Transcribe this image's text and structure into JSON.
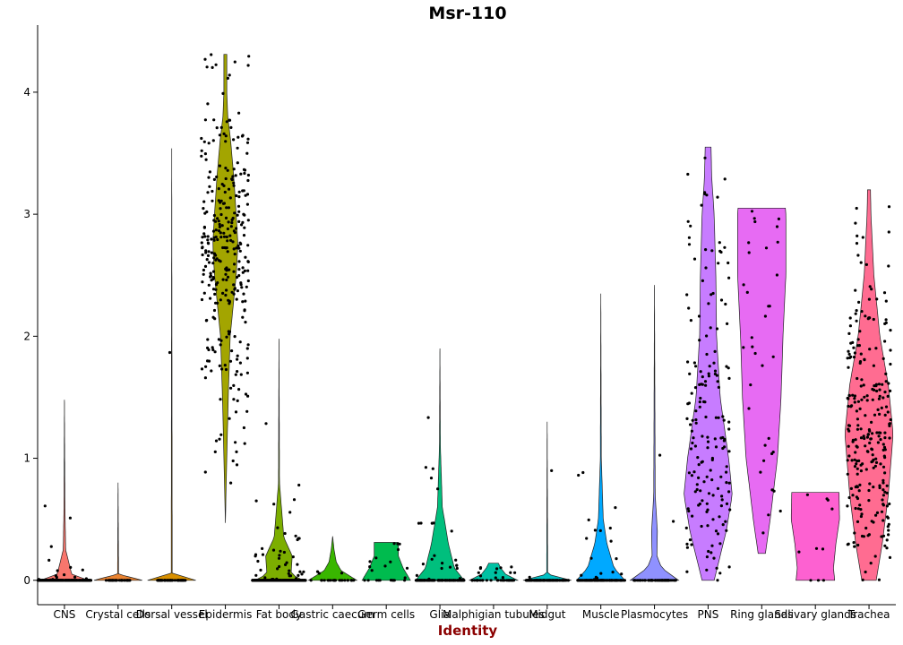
{
  "chart_data": {
    "type": "violin",
    "title": "Msr-110",
    "xlabel": "Identity",
    "ylabel": "",
    "ylim": [
      -0.2,
      4.55
    ],
    "yticks": [
      0,
      1,
      2,
      3,
      4
    ],
    "grid": false,
    "legend": "none",
    "categories": [
      {
        "name": "CNS",
        "color": "#f8766d",
        "max": 1.48,
        "profile": [
          [
            0,
            1.0
          ],
          [
            0.05,
            0.3
          ],
          [
            0.25,
            0.05
          ],
          [
            0.6,
            0.02
          ],
          [
            1.48,
            0.0
          ]
        ],
        "n": 260,
        "spread": 1.1
      },
      {
        "name": "Crystal cells",
        "color": "#ea8331",
        "max": 0.8,
        "profile": [
          [
            0,
            1.0
          ],
          [
            0.05,
            0.02
          ],
          [
            0.8,
            0.0
          ]
        ],
        "n": 28,
        "spread": 0.5
      },
      {
        "name": "Dorsal vessel",
        "color": "#d89000",
        "max": 3.54,
        "profile": [
          [
            0,
            1.0
          ],
          [
            0.05,
            0.02
          ],
          [
            3.54,
            0.0
          ]
        ],
        "n": 50,
        "spread": 0.6
      },
      {
        "name": "Epidermis",
        "color": "#a3a500",
        "max": 4.31,
        "profile": [
          [
            0.47,
            0.0
          ],
          [
            1.0,
            0.06
          ],
          [
            1.5,
            0.12
          ],
          [
            2.0,
            0.2
          ],
          [
            2.5,
            0.45
          ],
          [
            2.75,
            0.52
          ],
          [
            3.0,
            0.45
          ],
          [
            3.3,
            0.35
          ],
          [
            3.6,
            0.22
          ],
          [
            3.8,
            0.1
          ],
          [
            4.0,
            0.06
          ],
          [
            4.31,
            0.06
          ]
        ],
        "n": 320,
        "spread": 1.0,
        "minval": 0.47
      },
      {
        "name": "Fat body",
        "color": "#7cae00",
        "max": 1.98,
        "profile": [
          [
            0,
            1.0
          ],
          [
            0.05,
            0.5
          ],
          [
            0.2,
            0.55
          ],
          [
            0.35,
            0.2
          ],
          [
            0.8,
            0.02
          ],
          [
            1.98,
            0.0
          ]
        ],
        "n": 300,
        "spread": 1.1
      },
      {
        "name": "Gastric caecum",
        "color": "#39b600",
        "max": 0.36,
        "profile": [
          [
            0,
            1.0
          ],
          [
            0.08,
            0.35
          ],
          [
            0.15,
            0.15
          ],
          [
            0.25,
            0.06
          ],
          [
            0.36,
            0.0
          ]
        ],
        "n": 26,
        "spread": 0.9
      },
      {
        "name": "Germ cells",
        "color": "#00bb4e",
        "max": 0.31,
        "profile": [
          [
            0,
            1.0
          ],
          [
            0.1,
            0.7
          ],
          [
            0.2,
            0.5
          ],
          [
            0.31,
            0.5
          ]
        ],
        "n": 22,
        "spread": 0.9
      },
      {
        "name": "Glia",
        "color": "#00bf7d",
        "max": 1.9,
        "profile": [
          [
            0,
            1.0
          ],
          [
            0.1,
            0.6
          ],
          [
            0.3,
            0.35
          ],
          [
            0.6,
            0.1
          ],
          [
            1.1,
            0.02
          ],
          [
            1.9,
            0.0
          ]
        ],
        "n": 120,
        "spread": 1.0
      },
      {
        "name": "Malphigian tubules",
        "color": "#00c1a3",
        "max": 0.14,
        "profile": [
          [
            0,
            1.0
          ],
          [
            0.05,
            0.5
          ],
          [
            0.1,
            0.3
          ],
          [
            0.14,
            0.2
          ]
        ],
        "n": 40,
        "spread": 0.9
      },
      {
        "name": "Midgut",
        "color": "#00bfc4",
        "max": 1.3,
        "profile": [
          [
            0,
            1.0
          ],
          [
            0.05,
            0.02
          ],
          [
            1.3,
            0.0
          ]
        ],
        "n": 90,
        "spread": 0.9
      },
      {
        "name": "Muscle",
        "color": "#00a9ff",
        "max": 2.35,
        "profile": [
          [
            0,
            1.0
          ],
          [
            0.1,
            0.55
          ],
          [
            0.3,
            0.25
          ],
          [
            0.5,
            0.1
          ],
          [
            1.0,
            0.02
          ],
          [
            2.35,
            0.0
          ]
        ],
        "n": 120,
        "spread": 1.0
      },
      {
        "name": "Plasmocytes",
        "color": "#8f91ff",
        "max": 2.42,
        "profile": [
          [
            0,
            1.0
          ],
          [
            0.1,
            0.3
          ],
          [
            0.2,
            0.1
          ],
          [
            0.4,
            0.12
          ],
          [
            0.7,
            0.03
          ],
          [
            2.42,
            0.0
          ]
        ],
        "n": 60,
        "spread": 0.9
      },
      {
        "name": "PNS",
        "color": "#c77cff",
        "max": 3.55,
        "profile": [
          [
            0,
            0.25
          ],
          [
            0.4,
            0.75
          ],
          [
            0.7,
            1.0
          ],
          [
            1.0,
            0.85
          ],
          [
            1.5,
            0.5
          ],
          [
            2.0,
            0.35
          ],
          [
            2.5,
            0.32
          ],
          [
            3.0,
            0.25
          ],
          [
            3.3,
            0.15
          ],
          [
            3.55,
            0.12
          ]
        ],
        "n": 170,
        "spread": 0.9
      },
      {
        "name": "Ring glands",
        "color": "#e76bf3",
        "max": 3.05,
        "profile": [
          [
            0.22,
            0.15
          ],
          [
            0.5,
            0.35
          ],
          [
            1.0,
            0.65
          ],
          [
            1.5,
            0.8
          ],
          [
            2.0,
            0.88
          ],
          [
            2.5,
            1.0
          ],
          [
            3.0,
            1.0
          ],
          [
            3.05,
            0.98
          ]
        ],
        "n": 34,
        "spread": 0.8,
        "minval": 0.22
      },
      {
        "name": "Salivary glands",
        "color": "#fd61d1",
        "max": 0.72,
        "profile": [
          [
            0,
            0.8
          ],
          [
            0.1,
            0.75
          ],
          [
            0.3,
            0.85
          ],
          [
            0.5,
            1.0
          ],
          [
            0.72,
            0.98
          ]
        ],
        "n": 10,
        "spread": 0.7
      },
      {
        "name": "Trachea",
        "color": "#ff6c91",
        "max": 3.2,
        "profile": [
          [
            0,
            0.3
          ],
          [
            0.3,
            0.55
          ],
          [
            0.7,
            0.8
          ],
          [
            1.2,
            1.0
          ],
          [
            1.6,
            0.8
          ],
          [
            2.0,
            0.45
          ],
          [
            2.5,
            0.2
          ],
          [
            3.0,
            0.08
          ],
          [
            3.2,
            0.06
          ]
        ],
        "n": 260,
        "spread": 0.9
      }
    ]
  }
}
